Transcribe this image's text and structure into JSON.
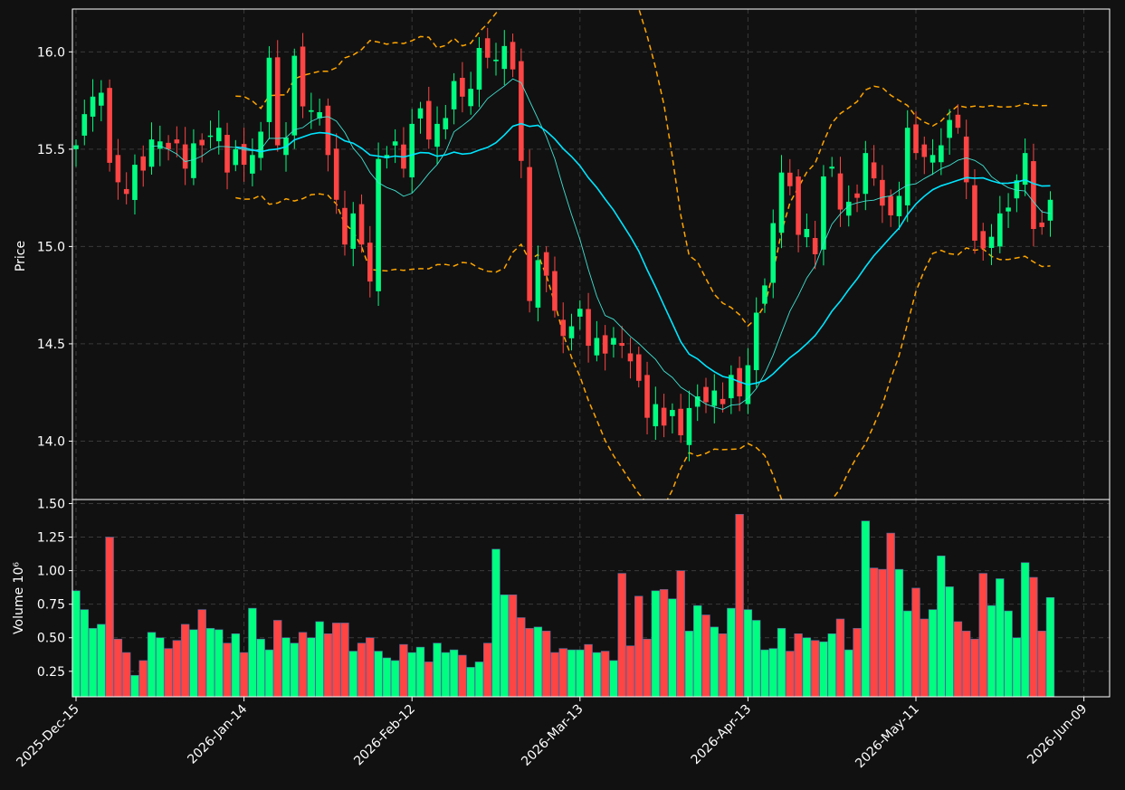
{
  "chart_data": [
    {
      "type": "candlestick",
      "ylabel": "Price",
      "ylim": [
        13.7,
        16.22
      ],
      "yticks": [
        14.0,
        14.5,
        15.0,
        15.5,
        16.0
      ],
      "ytick_labels": [
        "14.0",
        "14.5",
        "15.0",
        "15.5",
        "16.0"
      ],
      "grid": true,
      "colors": {
        "up": "#00ff80",
        "down": "#ff4444",
        "ma_long": "#00e5ff",
        "ma_short": "#40e0d0",
        "bands": "#ffa500",
        "background": "#111111",
        "grid": "#3a3a3a"
      },
      "bars": 117,
      "series": [
        {
          "role": "close",
          "values": [
            15.52,
            15.68,
            15.77,
            15.79,
            15.43,
            15.33,
            15.27,
            15.42,
            15.39,
            15.55,
            15.54,
            15.5,
            15.53,
            15.4,
            15.53,
            15.52,
            15.57,
            15.61,
            15.38,
            15.5,
            15.42,
            15.47,
            15.59,
            15.97,
            15.52,
            15.56,
            15.98,
            15.72,
            15.7,
            15.69,
            15.47,
            15.24,
            15.01,
            15.17,
            15.01,
            14.82,
            15.45,
            15.47,
            15.54,
            15.4,
            15.63,
            15.71,
            15.55,
            15.63,
            15.66,
            15.85,
            15.77,
            15.81,
            16.02,
            15.97,
            15.96,
            16.03,
            15.91,
            15.44,
            14.72,
            14.93,
            14.85,
            14.67,
            14.54,
            14.59,
            14.68,
            14.49,
            14.53,
            14.45,
            14.53,
            14.49,
            14.41,
            14.31,
            14.12,
            14.19,
            14.08,
            14.16,
            14.03,
            14.17,
            14.23,
            14.2,
            14.26,
            14.19,
            14.34,
            14.23,
            14.39,
            14.66,
            14.8,
            15.12,
            15.38,
            15.31,
            15.06,
            15.09,
            14.96,
            15.36,
            15.41,
            15.19,
            15.23,
            15.25,
            15.48,
            15.35,
            15.21,
            15.16,
            15.26,
            15.61,
            15.48,
            15.46,
            15.47,
            15.52,
            15.65,
            15.61,
            15.33,
            15.03,
            14.99,
            15.05,
            15.17,
            15.2,
            15.34,
            15.48,
            15.09,
            15.1,
            15.24
          ]
        },
        {
          "role": "volume",
          "label": "Volume  10⁶",
          "ylim": [
            0.06,
            1.53
          ],
          "yticks": [
            0.25,
            0.5,
            0.75,
            1.0,
            1.25,
            1.5
          ],
          "ytick_labels": [
            "0.25",
            "0.50",
            "0.75",
            "1.00",
            "1.25",
            "1.50"
          ],
          "values": [
            0.85,
            0.71,
            0.57,
            0.6,
            1.25,
            0.49,
            0.39,
            0.22,
            0.33,
            0.54,
            0.5,
            0.42,
            0.48,
            0.6,
            0.56,
            0.71,
            0.57,
            0.56,
            0.46,
            0.53,
            0.39,
            0.72,
            0.49,
            0.41,
            0.63,
            0.5,
            0.46,
            0.54,
            0.5,
            0.62,
            0.53,
            0.61,
            0.61,
            0.4,
            0.46,
            0.5,
            0.4,
            0.35,
            0.33,
            0.45,
            0.39,
            0.43,
            0.32,
            0.46,
            0.39,
            0.41,
            0.37,
            0.28,
            0.32,
            0.46,
            1.16,
            0.82,
            0.82,
            0.65,
            0.57,
            0.58,
            0.55,
            0.39,
            0.42,
            0.41,
            0.41,
            0.45,
            0.39,
            0.4,
            0.33,
            0.98,
            0.44,
            0.81,
            0.49,
            0.85,
            0.86,
            0.79,
            1.0,
            0.55,
            0.74,
            0.67,
            0.58,
            0.53,
            0.72,
            1.42,
            0.71,
            0.63,
            0.41,
            0.42,
            0.57,
            0.4,
            0.53,
            0.5,
            0.48,
            0.47,
            0.53,
            0.64,
            0.41,
            0.57,
            1.37,
            1.02,
            1.01,
            1.28,
            1.01,
            0.7,
            0.87,
            0.64,
            0.71,
            1.11,
            0.88,
            0.62,
            0.55,
            0.49,
            0.98,
            0.74,
            0.94,
            0.7,
            0.5,
            1.06,
            0.95,
            0.55,
            0.8
          ]
        }
      ],
      "xticks": [
        {
          "index": 0,
          "label": "2025-Dec-15"
        },
        {
          "index": 20,
          "label": "2026-Jan-14"
        },
        {
          "index": 40,
          "label": "2026-Feb-12"
        },
        {
          "index": 60,
          "label": "2026-Mar-13"
        },
        {
          "index": 80,
          "label": "2026-Apr-13"
        },
        {
          "index": 100,
          "label": "2026-May-11"
        },
        {
          "index": 120,
          "label": "2026-Jun-09"
        }
      ]
    }
  ]
}
